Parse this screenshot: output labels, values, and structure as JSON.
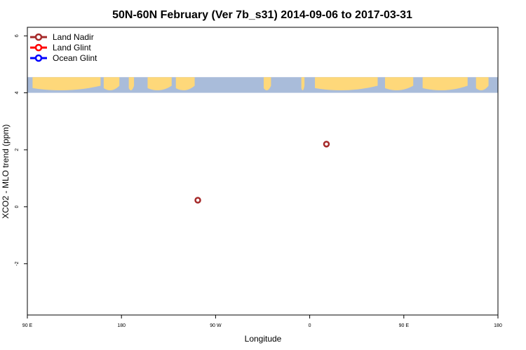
{
  "chart_data": {
    "type": "scatter",
    "title": "50N-60N February (Ver 7b_s31)   2014-09-06 to 2017-03-31",
    "xlabel": "Longitude",
    "ylabel": "XCO2 - MLO trend (ppm)",
    "xlim": [
      90,
      540
    ],
    "ylim": [
      -3.8,
      6.3
    ],
    "x_ticks": [
      {
        "value": 90,
        "label": "90 E"
      },
      {
        "value": 180,
        "label": "180"
      },
      {
        "value": 270,
        "label": "90 W"
      },
      {
        "value": 360,
        "label": "0"
      },
      {
        "value": 450,
        "label": "90 E"
      },
      {
        "value": 540,
        "label": "180"
      }
    ],
    "y_ticks": [
      {
        "value": -2,
        "label": "-2"
      },
      {
        "value": 0,
        "label": "0"
      },
      {
        "value": 2,
        "label": "2"
      },
      {
        "value": 4,
        "label": "4"
      },
      {
        "value": 6,
        "label": "6"
      }
    ],
    "legend_position": "top-left",
    "series": [
      {
        "name": "Land Nadir",
        "color": "#a52a2a",
        "points": [
          {
            "x": 253,
            "y": 0.23
          },
          {
            "x": 376,
            "y": 2.2
          }
        ]
      },
      {
        "name": "Land Glint",
        "color": "#ff0000",
        "points": []
      },
      {
        "name": "Ocean Glint",
        "color": "#0000ff",
        "points": []
      }
    ],
    "map_strip": {
      "y_range": [
        4.0,
        4.55
      ],
      "ocean_color": "#a9bcda",
      "land_color": "#fed87a"
    }
  }
}
